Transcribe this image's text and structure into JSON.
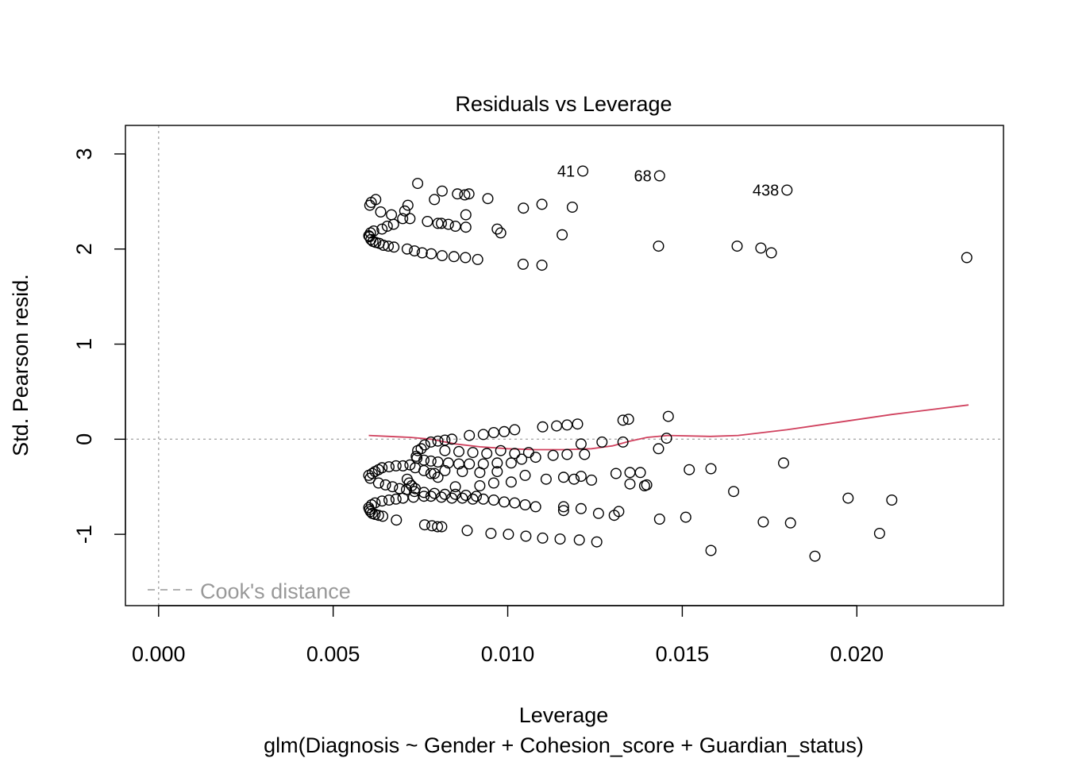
{
  "chart_data": {
    "type": "scatter",
    "title": "Residuals vs Leverage",
    "xlabel": "Leverage",
    "subtitle": "glm(Diagnosis ~ Gender + Cohesion_score + Guardian_status)",
    "ylabel": "Std. Pearson resid.",
    "xlim": [
      -0.00095,
      0.0242
    ],
    "ylim": [
      -1.75,
      3.3
    ],
    "xticks": [
      0.0,
      0.005,
      0.01,
      0.015,
      0.02
    ],
    "xtick_labels": [
      "0.000",
      "0.005",
      "0.010",
      "0.015",
      "0.020"
    ],
    "yticks": [
      -1,
      0,
      1,
      2,
      3
    ],
    "ytick_labels": [
      "-1",
      "0",
      "1",
      "2",
      "3"
    ],
    "legend": {
      "label": "Cook's distance",
      "position": "bottom-left",
      "color": "#999999"
    },
    "reference_lines": {
      "x": 0,
      "y": 0,
      "color": "#aaaaaa"
    },
    "smoother_color": "#d0415e",
    "point_color": "#000000",
    "labels": [
      {
        "text": "41",
        "x": 0.01215,
        "y": 2.82
      },
      {
        "text": "68",
        "x": 0.01435,
        "y": 2.77
      },
      {
        "text": "438",
        "x": 0.018,
        "y": 2.62
      }
    ],
    "smoother": [
      [
        0.00602,
        0.04
      ],
      [
        0.0066,
        0.03
      ],
      [
        0.0072,
        0.02
      ],
      [
        0.0078,
        0.0
      ],
      [
        0.0085,
        -0.05
      ],
      [
        0.0092,
        -0.08
      ],
      [
        0.01,
        -0.1
      ],
      [
        0.0108,
        -0.11
      ],
      [
        0.0116,
        -0.11
      ],
      [
        0.0124,
        -0.1
      ],
      [
        0.013,
        -0.07
      ],
      [
        0.0135,
        -0.02
      ],
      [
        0.014,
        0.02
      ],
      [
        0.0146,
        0.04
      ],
      [
        0.0158,
        0.03
      ],
      [
        0.0166,
        0.04
      ],
      [
        0.018,
        0.1
      ],
      [
        0.0195,
        0.18
      ],
      [
        0.021,
        0.26
      ],
      [
        0.0232,
        0.36
      ]
    ],
    "series": [
      {
        "name": "",
        "points": [
          [
            0.00602,
            2.14
          ],
          [
            0.00604,
            2.13
          ],
          [
            0.00608,
            2.1
          ],
          [
            0.00614,
            2.08
          ],
          [
            0.00622,
            2.07
          ],
          [
            0.00632,
            2.06
          ],
          [
            0.00644,
            2.04
          ],
          [
            0.00658,
            2.03
          ],
          [
            0.00674,
            2.02
          ],
          [
            0.00712,
            2.0
          ],
          [
            0.00733,
            1.98
          ],
          [
            0.00755,
            1.96
          ],
          [
            0.00781,
            1.95
          ],
          [
            0.00812,
            1.93
          ],
          [
            0.00846,
            1.92
          ],
          [
            0.00879,
            1.91
          ],
          [
            0.00914,
            1.89
          ],
          [
            0.00607,
            2.17
          ],
          [
            0.00616,
            2.19
          ],
          [
            0.0064,
            2.21
          ],
          [
            0.00655,
            2.24
          ],
          [
            0.00673,
            2.26
          ],
          [
            0.00699,
            2.32
          ],
          [
            0.0072,
            2.32
          ],
          [
            0.0077,
            2.29
          ],
          [
            0.008,
            2.27
          ],
          [
            0.0081,
            2.27
          ],
          [
            0.0083,
            2.26
          ],
          [
            0.0085,
            2.24
          ],
          [
            0.0088,
            2.23
          ],
          [
            0.00605,
            2.46
          ],
          [
            0.00609,
            2.49
          ],
          [
            0.00622,
            2.52
          ],
          [
            0.00636,
            2.39
          ],
          [
            0.00667,
            2.36
          ],
          [
            0.00705,
            2.4
          ],
          [
            0.00714,
            2.46
          ],
          [
            0.00742,
            2.69
          ],
          [
            0.0079,
            2.52
          ],
          [
            0.00812,
            2.61
          ],
          [
            0.00856,
            2.58
          ],
          [
            0.00877,
            2.57
          ],
          [
            0.00889,
            2.58
          ],
          [
            0.00943,
            2.53
          ],
          [
            0.0088,
            2.36
          ],
          [
            0.0097,
            2.21
          ],
          [
            0.0098,
            2.17
          ],
          [
            0.01045,
            2.43
          ],
          [
            0.01098,
            2.47
          ],
          [
            0.01185,
            2.44
          ],
          [
            0.01156,
            2.15
          ],
          [
            0.01044,
            1.84
          ],
          [
            0.01098,
            1.83
          ],
          [
            0.01215,
            2.82
          ],
          [
            0.01435,
            2.77
          ],
          [
            0.018,
            2.62
          ],
          [
            0.01432,
            2.03
          ],
          [
            0.01657,
            2.03
          ],
          [
            0.01725,
            2.01
          ],
          [
            0.01755,
            1.96
          ],
          [
            0.02315,
            1.91
          ],
          [
            0.00602,
            -0.72
          ],
          [
            0.00604,
            -0.74
          ],
          [
            0.00607,
            -0.76
          ],
          [
            0.00612,
            -0.78
          ],
          [
            0.0062,
            -0.79
          ],
          [
            0.0063,
            -0.8
          ],
          [
            0.00642,
            -0.81
          ],
          [
            0.00681,
            -0.85
          ],
          [
            0.00762,
            -0.9
          ],
          [
            0.00783,
            -0.91
          ],
          [
            0.00799,
            -0.92
          ],
          [
            0.00811,
            -0.92
          ],
          [
            0.00884,
            -0.96
          ],
          [
            0.00952,
            -0.99
          ],
          [
            0.01002,
            -1.0
          ],
          [
            0.01052,
            -1.02
          ],
          [
            0.011,
            -1.04
          ],
          [
            0.0115,
            -1.05
          ],
          [
            0.01205,
            -1.06
          ],
          [
            0.01255,
            -1.08
          ],
          [
            0.0061,
            -0.69
          ],
          [
            0.0062,
            -0.67
          ],
          [
            0.0064,
            -0.65
          ],
          [
            0.0066,
            -0.64
          ],
          [
            0.0068,
            -0.63
          ],
          [
            0.007,
            -0.62
          ],
          [
            0.0073,
            -0.61
          ],
          [
            0.0076,
            -0.6
          ],
          [
            0.0078,
            -0.6
          ],
          [
            0.0081,
            -0.61
          ],
          [
            0.0084,
            -0.62
          ],
          [
            0.0087,
            -0.62
          ],
          [
            0.009,
            -0.63
          ],
          [
            0.0093,
            -0.63
          ],
          [
            0.0096,
            -0.64
          ],
          [
            0.0099,
            -0.66
          ],
          [
            0.0102,
            -0.67
          ],
          [
            0.0105,
            -0.69
          ],
          [
            0.0108,
            -0.71
          ],
          [
            0.0116,
            -0.71
          ],
          [
            0.0116,
            -0.75
          ],
          [
            0.0121,
            -0.73
          ],
          [
            0.0126,
            -0.78
          ],
          [
            0.01305,
            -0.8
          ],
          [
            0.01318,
            -0.76
          ],
          [
            0.00602,
            -0.38
          ],
          [
            0.00606,
            -0.41
          ],
          [
            0.00612,
            -0.36
          ],
          [
            0.0062,
            -0.34
          ],
          [
            0.0063,
            -0.32
          ],
          [
            0.0064,
            -0.3
          ],
          [
            0.0066,
            -0.29
          ],
          [
            0.0068,
            -0.28
          ],
          [
            0.007,
            -0.28
          ],
          [
            0.0072,
            -0.27
          ],
          [
            0.00735,
            -0.3
          ],
          [
            0.0076,
            -0.33
          ],
          [
            0.0079,
            -0.36
          ],
          [
            0.008,
            -0.4
          ],
          [
            0.0085,
            -0.5
          ],
          [
            0.0092,
            -0.49
          ],
          [
            0.0096,
            -0.46
          ],
          [
            0.0101,
            -0.45
          ],
          [
            0.0111,
            -0.42
          ],
          [
            0.0116,
            -0.4
          ],
          [
            0.0119,
            -0.42
          ],
          [
            0.0121,
            -0.39
          ],
          [
            0.0124,
            -0.43
          ],
          [
            0.0131,
            -0.36
          ],
          [
            0.0135,
            -0.35
          ],
          [
            0.0135,
            -0.47
          ],
          [
            0.0138,
            -0.35
          ],
          [
            0.01392,
            -0.49
          ],
          [
            0.01398,
            -0.48
          ],
          [
            0.0063,
            -0.46
          ],
          [
            0.0065,
            -0.48
          ],
          [
            0.0067,
            -0.5
          ],
          [
            0.0069,
            -0.52
          ],
          [
            0.0071,
            -0.53
          ],
          [
            0.00733,
            -0.55
          ],
          [
            0.0076,
            -0.56
          ],
          [
            0.0079,
            -0.57
          ],
          [
            0.0082,
            -0.58
          ],
          [
            0.0085,
            -0.58
          ],
          [
            0.0088,
            -0.59
          ],
          [
            0.0091,
            -0.6
          ],
          [
            0.00712,
            -0.42
          ],
          [
            0.00718,
            -0.46
          ],
          [
            0.00725,
            -0.49
          ],
          [
            0.00735,
            -0.52
          ],
          [
            0.00738,
            -0.18
          ],
          [
            0.00742,
            -0.12
          ],
          [
            0.00752,
            -0.1
          ],
          [
            0.00762,
            -0.06
          ],
          [
            0.0078,
            -0.03
          ],
          [
            0.008,
            -0.02
          ],
          [
            0.0082,
            -0.01
          ],
          [
            0.0084,
            0.0
          ],
          [
            0.0089,
            0.04
          ],
          [
            0.0093,
            0.05
          ],
          [
            0.0096,
            0.07
          ],
          [
            0.0099,
            0.08
          ],
          [
            0.0102,
            0.1
          ],
          [
            0.011,
            0.13
          ],
          [
            0.0114,
            0.14
          ],
          [
            0.0117,
            0.15
          ],
          [
            0.012,
            0.16
          ],
          [
            0.0133,
            0.2
          ],
          [
            0.01346,
            0.21
          ],
          [
            0.0146,
            0.24
          ],
          [
            0.01455,
            0.01
          ],
          [
            0.01432,
            -0.1
          ],
          [
            0.0074,
            -0.2
          ],
          [
            0.0076,
            -0.22
          ],
          [
            0.0078,
            -0.23
          ],
          [
            0.008,
            -0.24
          ],
          [
            0.0083,
            -0.25
          ],
          [
            0.0086,
            -0.26
          ],
          [
            0.0089,
            -0.26
          ],
          [
            0.0093,
            -0.26
          ],
          [
            0.0097,
            -0.25
          ],
          [
            0.0101,
            -0.25
          ],
          [
            0.0104,
            -0.21
          ],
          [
            0.0108,
            -0.19
          ],
          [
            0.0113,
            -0.17
          ],
          [
            0.0117,
            -0.16
          ],
          [
            0.0121,
            -0.05
          ],
          [
            0.0122,
            -0.16
          ],
          [
            0.0127,
            -0.03
          ],
          [
            0.0133,
            -0.03
          ],
          [
            0.0082,
            -0.12
          ],
          [
            0.0086,
            -0.13
          ],
          [
            0.009,
            -0.14
          ],
          [
            0.0094,
            -0.15
          ],
          [
            0.0098,
            -0.12
          ],
          [
            0.0102,
            -0.15
          ],
          [
            0.0106,
            -0.14
          ],
          [
            0.0078,
            -0.36
          ],
          [
            0.0082,
            -0.33
          ],
          [
            0.0087,
            -0.34
          ],
          [
            0.0092,
            -0.35
          ],
          [
            0.0097,
            -0.34
          ],
          [
            0.0105,
            -0.38
          ],
          [
            0.0152,
            -0.32
          ],
          [
            0.01582,
            -0.31
          ],
          [
            0.0151,
            -0.82
          ],
          [
            0.01435,
            -0.84
          ],
          [
            0.01582,
            -1.17
          ],
          [
            0.01647,
            -0.55
          ],
          [
            0.01732,
            -0.87
          ],
          [
            0.0179,
            -0.25
          ],
          [
            0.0181,
            -0.88
          ],
          [
            0.0188,
            -1.23
          ],
          [
            0.01975,
            -0.62
          ],
          [
            0.02065,
            -0.99
          ],
          [
            0.021,
            -0.64
          ]
        ]
      }
    ]
  }
}
